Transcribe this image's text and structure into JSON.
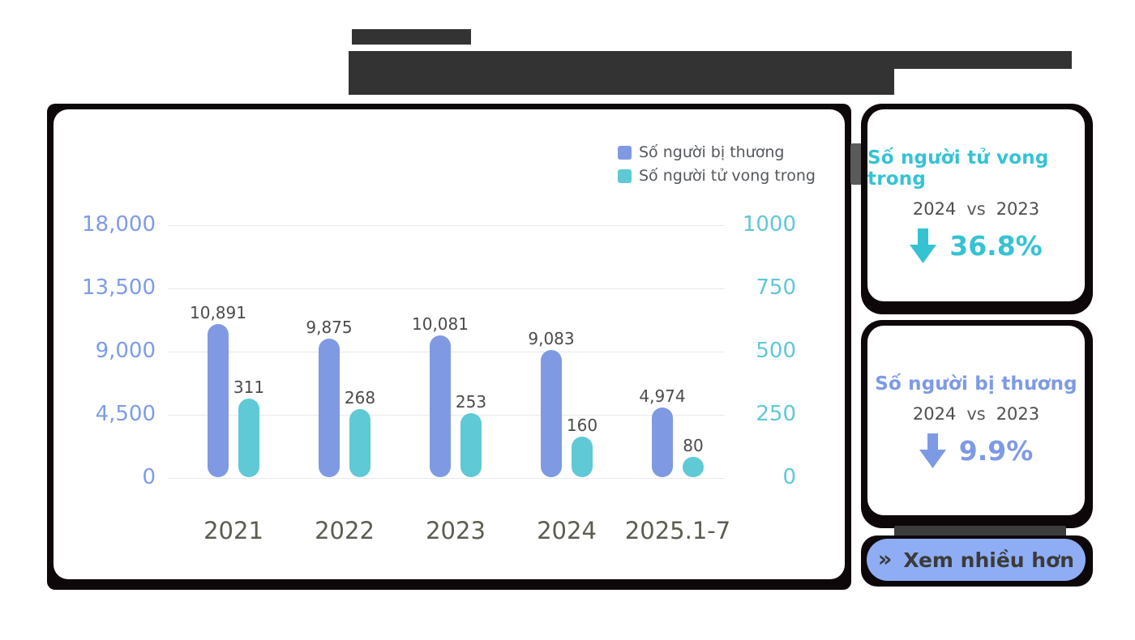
{
  "chart_data": {
    "type": "bar",
    "title": "",
    "categories": [
      "2021",
      "2022",
      "2023",
      "2024",
      "2025.1-7"
    ],
    "series": [
      {
        "name": "Số người bị thương",
        "axis": "left",
        "color": "#7f9ae2",
        "values": [
          10891,
          9875,
          10081,
          9083,
          4974
        ],
        "value_labels": [
          "10,891",
          "9,875",
          "10,081",
          "9,083",
          "4,974"
        ]
      },
      {
        "name": "Số người tử vong trong",
        "axis": "right",
        "color": "#5fc9d6",
        "values": [
          311,
          268,
          253,
          160,
          80
        ],
        "value_labels": [
          "311",
          "268",
          "253",
          "160",
          "80"
        ]
      }
    ],
    "left_axis": {
      "max": 18000,
      "min": 0,
      "tick_labels": [
        "18,000",
        "13,500",
        "9,000",
        "4,500",
        "0"
      ],
      "color": "#7d9ce8"
    },
    "right_axis": {
      "max": 1000,
      "min": 0,
      "tick_labels": [
        "1000",
        "750",
        "500",
        "250",
        "0"
      ],
      "color": "#5fc8d8"
    },
    "grid": true,
    "legend_position": "top-right"
  },
  "cards": [
    {
      "title": "Số người tử vong trong",
      "compare_before": "2024",
      "compare_vs": "vs",
      "compare_after": "2023",
      "change": "36.8%",
      "direction": "down",
      "accent": "#35c3d3"
    },
    {
      "title": "Số người bị thương",
      "compare_before": "2024",
      "compare_vs": "vs",
      "compare_after": "2023",
      "change": "9.9%",
      "direction": "down",
      "accent": "#7d9ae4"
    }
  ],
  "more_button": {
    "icon": "»",
    "label": "Xem nhiều hơn"
  }
}
